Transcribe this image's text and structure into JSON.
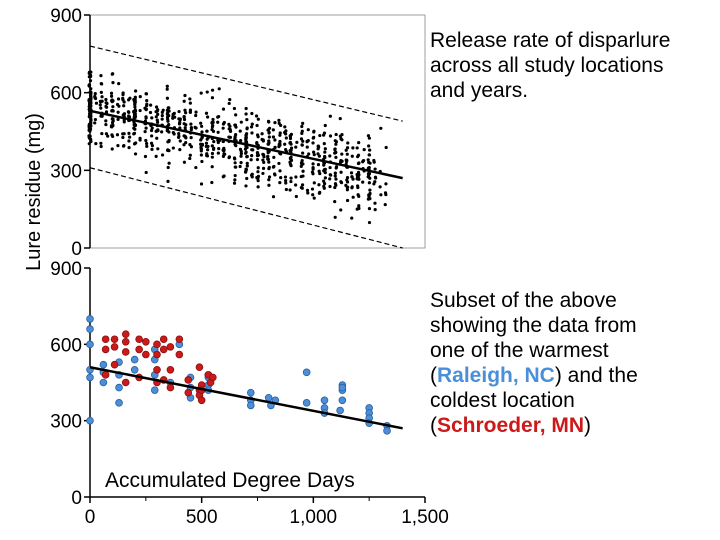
{
  "chart_data": [
    {
      "type": "scatter",
      "panel": "top",
      "annotation": "Release rate of disparlure across all study locations and years.",
      "ylabel": "Lure residue (mg)",
      "ylim": [
        0,
        900
      ],
      "xlim": [
        0,
        1500
      ],
      "yticks": [
        0,
        300,
        600,
        900
      ],
      "trend_line": {
        "x": [
          0,
          1400
        ],
        "y": [
          530,
          270
        ]
      },
      "upper_band": {
        "x": [
          0,
          1400
        ],
        "y": [
          780,
          490
        ]
      },
      "lower_band": {
        "x": [
          0,
          1400
        ],
        "y": [
          310,
          0
        ]
      },
      "point_color": "#000000",
      "point_count": 900
    },
    {
      "type": "scatter",
      "panel": "bottom",
      "annotation": {
        "line1": "Subset of the above",
        "line2": "showing the data from",
        "line3": "one of the warmest",
        "open_paren": "(",
        "raleigh": "Raleigh, NC",
        "line4_rest": ") and the",
        "line5": "coldest location",
        "schroeder": "Schroeder, MN",
        "close_paren": ")"
      },
      "xlabel": "Accumulated Degree Days",
      "ylim": [
        0,
        900
      ],
      "xlim": [
        0,
        1500
      ],
      "yticks": [
        0,
        300,
        600,
        900
      ],
      "xticks": [
        "0",
        "500",
        "1,000",
        "1,500"
      ],
      "xtick_values": [
        0,
        500,
        1000,
        1500
      ],
      "trend_line": {
        "x": [
          0,
          1400
        ],
        "y": [
          510,
          270
        ]
      },
      "series": [
        {
          "name": "Raleigh, NC",
          "color": "#4a8fd8",
          "x": [
            0,
            0,
            0,
            0,
            0,
            0,
            60,
            60,
            60,
            130,
            130,
            130,
            130,
            200,
            200,
            290,
            290,
            290,
            290,
            360,
            400,
            450,
            450,
            450,
            530,
            530,
            530,
            530,
            720,
            720,
            720,
            800,
            810,
            830,
            970,
            970,
            1050,
            1050,
            1050,
            1120,
            1130,
            1130,
            1130,
            1130,
            1250,
            1250,
            1250,
            1250,
            1330,
            1330
          ],
          "y": [
            700,
            660,
            600,
            500,
            470,
            300,
            520,
            490,
            450,
            530,
            480,
            430,
            370,
            540,
            500,
            580,
            540,
            480,
            420,
            450,
            600,
            390,
            430,
            470,
            470,
            440,
            420,
            480,
            410,
            380,
            360,
            390,
            360,
            380,
            490,
            370,
            380,
            350,
            330,
            340,
            380,
            420,
            440,
            430,
            350,
            330,
            310,
            290,
            280,
            260
          ]
        },
        {
          "name": "Schroeder, MN",
          "color": "#cc1a1a",
          "x": [
            70,
            70,
            70,
            110,
            110,
            110,
            160,
            160,
            160,
            160,
            220,
            220,
            220,
            250,
            250,
            300,
            300,
            300,
            300,
            330,
            330,
            330,
            360,
            360,
            360,
            400,
            400,
            440,
            440,
            490,
            490,
            490,
            500,
            500,
            500,
            530,
            540,
            550
          ],
          "y": [
            620,
            580,
            480,
            620,
            590,
            520,
            640,
            610,
            570,
            450,
            620,
            580,
            470,
            610,
            560,
            600,
            560,
            500,
            450,
            620,
            580,
            460,
            590,
            500,
            430,
            620,
            560,
            460,
            410,
            510,
            420,
            400,
            440,
            420,
            380,
            480,
            450,
            470
          ]
        }
      ]
    }
  ]
}
